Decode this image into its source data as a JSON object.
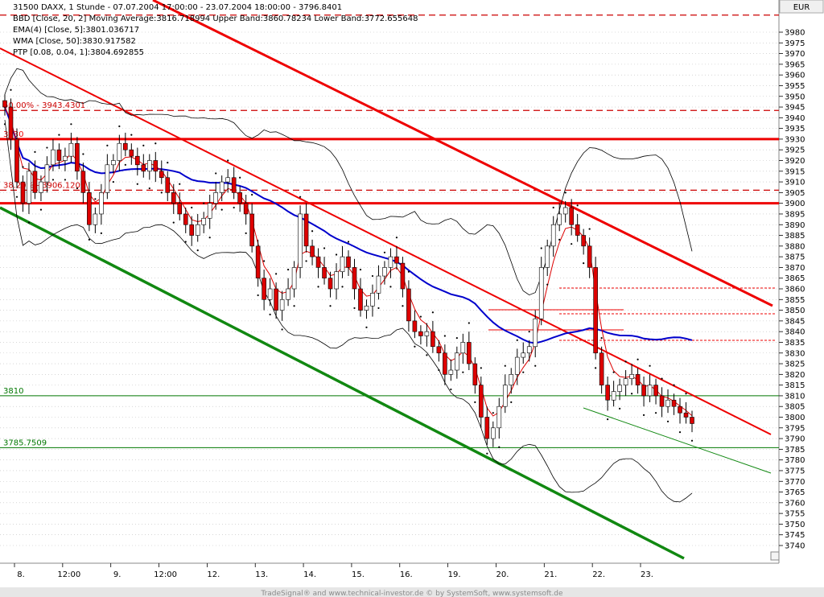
{
  "window": {
    "currency": "EUR",
    "footer": "TradeSignal® and www.technical-investor.de © by SystemSoft, www.systemsoft.de"
  },
  "chart_data": {
    "type": "candlestick",
    "title": "31500  DAXX, 1 Stunde - 07.07.2004 17:00:00 - 23.07.2004 18:00:00 - 3796.8401",
    "legend_lines": [
      {
        "text": "BBD [Close, 20, 2] Moving Average:3816.718994 Upper Band:3860.78234 Lower Band:3772.655648",
        "color": "#000000"
      },
      {
        "text": "EMA(4) [Close, 5]:3801.036717",
        "color": "#cc0000"
      },
      {
        "text": "WMA [Close, 50]:3830.917582",
        "color": "#0000cc"
      },
      {
        "text": "PTP [0.08, 0.04, 1]:3804.692855",
        "color": "#000000"
      }
    ],
    "currency": "EUR",
    "ylim": [
      3735,
      3995
    ],
    "y_ticks": [
      3740,
      3745,
      3750,
      3755,
      3760,
      3765,
      3770,
      3775,
      3780,
      3785,
      3790,
      3795,
      3800,
      3805,
      3810,
      3815,
      3820,
      3825,
      3830,
      3835,
      3840,
      3845,
      3850,
      3855,
      3860,
      3865,
      3870,
      3875,
      3880,
      3885,
      3890,
      3895,
      3900,
      3905,
      3910,
      3915,
      3920,
      3925,
      3930,
      3935,
      3940,
      3945,
      3950,
      3955,
      3960,
      3965,
      3970,
      3975,
      3980
    ],
    "x_labels": [
      "8.",
      "12:00",
      "9.",
      "12:00",
      "12.",
      "13.",
      "14.",
      "15.",
      "16.",
      "19.",
      "20.",
      "21.",
      "22.",
      "23."
    ],
    "horizontal_levels": [
      {
        "label": "50.00% - 3943.4301",
        "value": 3943.43,
        "color": "#cc0000",
        "style": "dashed"
      },
      {
        "label": "3930",
        "value": 3930,
        "color": "#ee0000",
        "style": "solid-thick"
      },
      {
        "label": "38.20% - 3906.1209",
        "value": 3906.12,
        "color": "#cc0000",
        "style": "dashed"
      },
      {
        "label": "",
        "value": 3900,
        "color": "#ee0000",
        "style": "solid-thick"
      },
      {
        "label": "",
        "value": 3988,
        "color": "#cc0000",
        "style": "dashed"
      },
      {
        "label": "3810",
        "value": 3810,
        "color": "#007700",
        "style": "solid-thin"
      },
      {
        "label": "3785.7509",
        "value": 3785.75,
        "color": "#007700",
        "style": "solid-thin"
      }
    ],
    "candles_close": [
      3945,
      3930,
      3910,
      3900,
      3915,
      3905,
      3910,
      3918,
      3925,
      3920,
      3922,
      3928,
      3915,
      3905,
      3890,
      3895,
      3905,
      3918,
      3920,
      3928,
      3925,
      3922,
      3918,
      3915,
      3920,
      3915,
      3912,
      3905,
      3900,
      3895,
      3890,
      3885,
      3890,
      3893,
      3900,
      3905,
      3910,
      3912,
      3905,
      3900,
      3895,
      3880,
      3865,
      3855,
      3860,
      3850,
      3855,
      3860,
      3870,
      3895,
      3880,
      3875,
      3870,
      3865,
      3860,
      3868,
      3875,
      3870,
      3860,
      3850,
      3852,
      3858,
      3866,
      3870,
      3875,
      3872,
      3860,
      3845,
      3840,
      3838,
      3840,
      3833,
      3830,
      3820,
      3822,
      3830,
      3835,
      3825,
      3815,
      3800,
      3790,
      3795,
      3805,
      3815,
      3820,
      3828,
      3830,
      3833,
      3846,
      3870,
      3880,
      3890,
      3895,
      3898,
      3890,
      3885,
      3880,
      3870,
      3830,
      3815,
      3808,
      3812,
      3815,
      3818,
      3820,
      3815,
      3810,
      3815,
      3810,
      3805,
      3808,
      3805,
      3802,
      3800,
      3797
    ]
  }
}
